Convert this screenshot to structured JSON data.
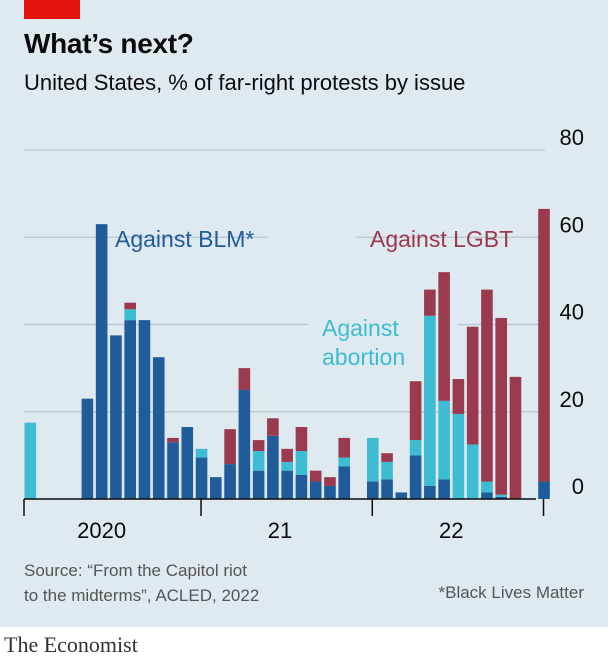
{
  "header": {
    "title": "What’s next?",
    "subtitle": "United States, % of far-right protests by issue"
  },
  "colors": {
    "blm": "#1f5c99",
    "abortion": "#3ebcd2",
    "lgbt": "#9a3a4e",
    "grid": "#b9c4cc",
    "axis": "#0c0c0c",
    "text": "#0c0c0c"
  },
  "chart_data": {
    "type": "bar",
    "stacked": true,
    "ylim": [
      0,
      80
    ],
    "yticks": [
      0,
      20,
      40,
      60,
      80
    ],
    "grid": true,
    "x": [
      1,
      2,
      3,
      4,
      5,
      6,
      7,
      8,
      9,
      10,
      11,
      12,
      13,
      14,
      15,
      16,
      17,
      18,
      19,
      20,
      21,
      22,
      23,
      24,
      25,
      26,
      27,
      28,
      29,
      30,
      31,
      32,
      33,
      34,
      35,
      36,
      37
    ],
    "xtick_labels": [
      {
        "label": "2020",
        "at": 6
      },
      {
        "label": "21",
        "at": 18.5
      },
      {
        "label": "22",
        "at": 30.5
      }
    ],
    "series": [
      {
        "name": "Against BLM*",
        "color_key": "blm",
        "values": [
          0,
          0,
          0,
          0,
          23,
          63,
          37.5,
          41,
          41,
          32.5,
          13,
          16.5,
          9.5,
          5,
          8,
          25,
          6.5,
          14.5,
          6.5,
          5.5,
          4,
          3,
          7.5,
          0,
          4,
          4.5,
          1.5,
          10,
          3,
          4.5,
          0,
          0,
          1.5,
          0.5,
          0,
          0,
          4
        ]
      },
      {
        "name": "Against abortion",
        "color_key": "abortion",
        "values": [
          17.5,
          0,
          0,
          0,
          0,
          0,
          0,
          2.5,
          0,
          0,
          0,
          0,
          2,
          0,
          0,
          0,
          4.5,
          0,
          2,
          5.5,
          0,
          0,
          2,
          0,
          10,
          4,
          0,
          3.5,
          39,
          18,
          19.5,
          12.5,
          2.5,
          0.5,
          0,
          0,
          0
        ]
      },
      {
        "name": "Against LGBT",
        "color_key": "lgbt",
        "values": [
          0,
          0,
          0,
          0,
          0,
          0,
          0,
          1.5,
          0,
          0,
          1,
          0,
          0,
          0,
          8,
          5,
          2.5,
          4,
          3,
          5.5,
          2.5,
          2,
          4.5,
          0,
          0,
          2,
          0,
          13.5,
          6,
          29.5,
          8,
          27,
          44,
          40.5,
          28,
          0,
          62.5
        ]
      }
    ],
    "annotations": [
      {
        "text": "Against BLM*",
        "color_key": "blm"
      },
      {
        "text": "Against LGBT",
        "color_key": "lgbt"
      },
      {
        "text": "Against",
        "color_key": "abortion"
      },
      {
        "text": "abortion",
        "color_key": "abortion"
      }
    ]
  },
  "footer": {
    "source_line1": "Source: “From the Capitol riot",
    "source_line2": "to the midterms”, ACLED, 2022",
    "footnote": "*Black Lives Matter",
    "brand": "The Economist"
  }
}
